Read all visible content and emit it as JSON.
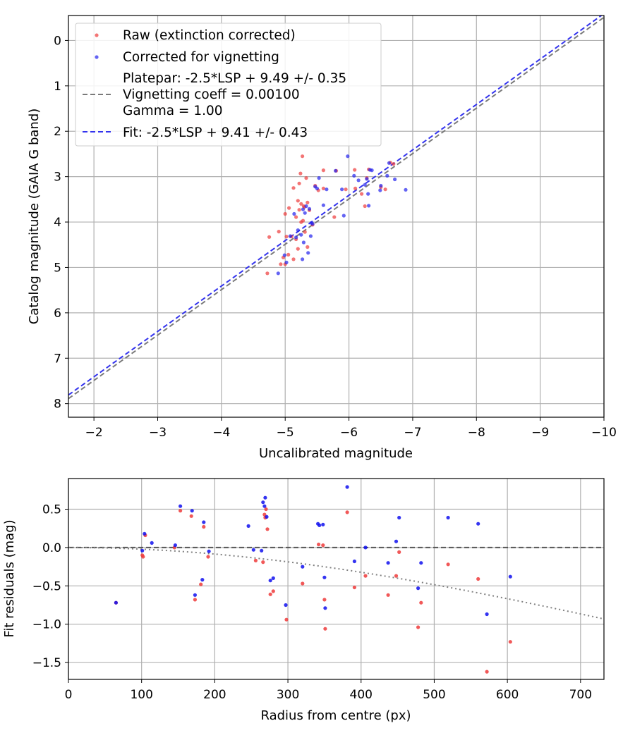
{
  "chart_data": [
    {
      "type": "scatter",
      "xlabel": "Uncalibrated magnitude",
      "ylabel": "Catalog magnitude (GAIA G band)",
      "xlim": [
        -1.6,
        -10
      ],
      "ylim": [
        8.3,
        -0.55
      ],
      "xticks": [
        -2,
        -3,
        -4,
        -5,
        -6,
        -7,
        -8,
        -9,
        -10
      ],
      "xtick_labels": [
        "−2",
        "−3",
        "−4",
        "−5",
        "−6",
        "−7",
        "−8",
        "−9",
        "−10"
      ],
      "yticks": [
        0,
        1,
        2,
        3,
        4,
        5,
        6,
        7,
        8
      ],
      "ytick_labels": [
        "0",
        "1",
        "2",
        "3",
        "4",
        "5",
        "6",
        "7",
        "8"
      ],
      "grid": true,
      "legend_position": "top-left",
      "series": [
        {
          "name": "raw",
          "label": "Raw (extinction corrected)",
          "color": "#ee3b3b",
          "points": [
            [
              -4.72,
              5.13
            ],
            [
              -4.75,
              4.33
            ],
            [
              -4.9,
              4.21
            ],
            [
              -4.93,
              4.93
            ],
            [
              -4.97,
              4.78
            ],
            [
              -5.0,
              4.93
            ],
            [
              -5.0,
              3.82
            ],
            [
              -5.02,
              4.32
            ],
            [
              -5.05,
              4.72
            ],
            [
              -5.06,
              3.69
            ],
            [
              -5.1,
              4.32
            ],
            [
              -5.13,
              4.82
            ],
            [
              -5.13,
              3.25
            ],
            [
              -5.17,
              3.89
            ],
            [
              -5.17,
              4.38
            ],
            [
              -5.2,
              3.53
            ],
            [
              -5.2,
              4.59
            ],
            [
              -5.22,
              3.73
            ],
            [
              -5.22,
              3.15
            ],
            [
              -5.24,
              2.93
            ],
            [
              -5.25,
              4.0
            ],
            [
              -5.25,
              3.6
            ],
            [
              -5.27,
              2.55
            ],
            [
              -5.28,
              3.97
            ],
            [
              -5.29,
              3.65
            ],
            [
              -5.3,
              3.67
            ],
            [
              -5.31,
              4.22
            ],
            [
              -5.33,
              3.03
            ],
            [
              -5.35,
              4.55
            ],
            [
              -5.35,
              3.57
            ],
            [
              -5.38,
              3.74
            ],
            [
              -5.43,
              4.06
            ],
            [
              -5.47,
              3.2
            ],
            [
              -5.52,
              3.3
            ],
            [
              -5.6,
              2.86
            ],
            [
              -5.6,
              3.26
            ],
            [
              -5.77,
              3.89
            ],
            [
              -5.8,
              2.87
            ],
            [
              -5.95,
              3.28
            ],
            [
              -6.09,
              2.85
            ],
            [
              -6.1,
              3.26
            ],
            [
              -6.2,
              3.38
            ],
            [
              -6.25,
              3.65
            ],
            [
              -6.28,
              3.03
            ],
            [
              -6.31,
              2.84
            ],
            [
              -6.5,
              3.23
            ],
            [
              -6.57,
              3.28
            ],
            [
              -6.65,
              2.69
            ],
            [
              -6.7,
              2.72
            ]
          ]
        },
        {
          "name": "corrected",
          "label": "Corrected for vignetting",
          "color": "#2222ee",
          "points": [
            [
              -4.89,
              5.13
            ],
            [
              -4.99,
              4.73
            ],
            [
              -5.02,
              4.89
            ],
            [
              -5.08,
              4.31
            ],
            [
              -5.14,
              3.82
            ],
            [
              -5.17,
              4.34
            ],
            [
              -5.2,
              4.18
            ],
            [
              -5.25,
              4.28
            ],
            [
              -5.27,
              4.82
            ],
            [
              -5.28,
              3.72
            ],
            [
              -5.29,
              4.45
            ],
            [
              -5.31,
              3.8
            ],
            [
              -5.33,
              3.65
            ],
            [
              -5.36,
              4.68
            ],
            [
              -5.38,
              3.71
            ],
            [
              -5.4,
              4.31
            ],
            [
              -5.41,
              4.02
            ],
            [
              -5.43,
              4.04
            ],
            [
              -5.47,
              3.22
            ],
            [
              -5.5,
              3.26
            ],
            [
              -5.53,
              3.03
            ],
            [
              -5.6,
              3.63
            ],
            [
              -5.65,
              3.28
            ],
            [
              -5.79,
              2.87
            ],
            [
              -5.89,
              3.28
            ],
            [
              -5.92,
              3.86
            ],
            [
              -5.98,
              2.55
            ],
            [
              -6.08,
              2.98
            ],
            [
              -6.15,
              3.08
            ],
            [
              -6.25,
              3.18
            ],
            [
              -6.28,
              3.05
            ],
            [
              -6.3,
              3.38
            ],
            [
              -6.31,
              3.64
            ],
            [
              -6.33,
              2.85
            ],
            [
              -6.36,
              2.86
            ],
            [
              -6.49,
              3.3
            ],
            [
              -6.5,
              3.2
            ],
            [
              -6.6,
              2.98
            ],
            [
              -6.63,
              2.7
            ],
            [
              -6.72,
              3.06
            ],
            [
              -6.89,
              3.29
            ]
          ]
        }
      ],
      "lines": [
        {
          "label": "Platepar: -2.5*LSP + 9.49 +/- 0.35\nVignetting coeff = 0.00100\nGamma = 1.00",
          "color": "#7a7a7a",
          "style": "dashed",
          "x": [
            -1.6,
            -10
          ],
          "y": [
            7.89,
            -0.51
          ]
        },
        {
          "label": "Fit: -2.5*LSP + 9.41 +/- 0.43",
          "color": "#3333ee",
          "style": "dashed",
          "x": [
            -1.6,
            -10
          ],
          "y": [
            7.81,
            -0.59
          ]
        }
      ]
    },
    {
      "type": "scatter",
      "xlabel": "Radius from centre (px)",
      "ylabel": "Fit residuals (mag)",
      "xlim": [
        0,
        732
      ],
      "ylim": [
        -1.72,
        0.9
      ],
      "xticks": [
        0,
        100,
        200,
        300,
        400,
        500,
        600,
        700
      ],
      "xtick_labels": [
        "0",
        "100",
        "200",
        "300",
        "400",
        "500",
        "600",
        "700"
      ],
      "yticks": [
        0.5,
        0.0,
        -0.5,
        -1.0,
        -1.5
      ],
      "ytick_labels": [
        "0.5",
        "0.0",
        "−0.5",
        "−1.0",
        "−1.5"
      ],
      "grid": true,
      "series": [
        {
          "name": "raw",
          "color": "#ee3b3b",
          "points": [
            [
              65,
              -0.72
            ],
            [
              101,
              -0.1
            ],
            [
              102,
              -0.12
            ],
            [
              105,
              0.16
            ],
            [
              145,
              0.0
            ],
            [
              153,
              0.48
            ],
            [
              168,
              0.41
            ],
            [
              173,
              -0.68
            ],
            [
              181,
              -0.48
            ],
            [
              185,
              0.27
            ],
            [
              191,
              -0.12
            ],
            [
              256,
              -0.17
            ],
            [
              266,
              -0.19
            ],
            [
              268,
              0.43
            ],
            [
              269,
              0.39
            ],
            [
              270,
              0.5
            ],
            [
              272,
              0.24
            ],
            [
              276,
              -0.61
            ],
            [
              280,
              -0.57
            ],
            [
              298,
              -0.94
            ],
            [
              320,
              -0.47
            ],
            [
              342,
              0.04
            ],
            [
              348,
              0.03
            ],
            [
              350,
              -0.68
            ],
            [
              351,
              -1.06
            ],
            [
              381,
              0.46
            ],
            [
              391,
              -0.52
            ],
            [
              406,
              -0.37
            ],
            [
              437,
              -0.62
            ],
            [
              448,
              -0.37
            ],
            [
              452,
              -0.06
            ],
            [
              478,
              -1.04
            ],
            [
              482,
              -0.72
            ],
            [
              519,
              -0.22
            ],
            [
              560,
              -0.41
            ],
            [
              572,
              -1.62
            ],
            [
              604,
              -1.23
            ]
          ]
        },
        {
          "name": "corrected",
          "color": "#1111ee",
          "points": [
            [
              65,
              -0.72
            ],
            [
              101,
              -0.04
            ],
            [
              104,
              0.18
            ],
            [
              114,
              0.06
            ],
            [
              146,
              0.03
            ],
            [
              153,
              0.54
            ],
            [
              169,
              0.48
            ],
            [
              173,
              -0.62
            ],
            [
              183,
              -0.42
            ],
            [
              185,
              0.33
            ],
            [
              192,
              -0.05
            ],
            [
              246,
              0.28
            ],
            [
              253,
              -0.03
            ],
            [
              264,
              -0.04
            ],
            [
              266,
              0.59
            ],
            [
              268,
              0.54
            ],
            [
              269,
              0.65
            ],
            [
              271,
              0.4
            ],
            [
              276,
              -0.43
            ],
            [
              280,
              -0.4
            ],
            [
              297,
              -0.75
            ],
            [
              320,
              -0.25
            ],
            [
              341,
              0.31
            ],
            [
              343,
              0.29
            ],
            [
              348,
              0.3
            ],
            [
              350,
              -0.39
            ],
            [
              351,
              -0.79
            ],
            [
              381,
              0.79
            ],
            [
              391,
              -0.18
            ],
            [
              406,
              0.0
            ],
            [
              437,
              -0.2
            ],
            [
              448,
              0.08
            ],
            [
              452,
              0.39
            ],
            [
              478,
              -0.53
            ],
            [
              482,
              -0.2
            ],
            [
              519,
              0.39
            ],
            [
              560,
              0.31
            ],
            [
              572,
              -0.87
            ],
            [
              604,
              -0.38
            ]
          ]
        }
      ],
      "lines": [
        {
          "name": "zero-residual",
          "color": "#555555",
          "style": "dashed",
          "x": [
            0,
            732
          ],
          "y": [
            0,
            0
          ]
        },
        {
          "name": "vignetting-curve",
          "color": "#808080",
          "style": "dotted",
          "function": "2.5*log10(cos(atan(0.001*r))^4)",
          "coeff": 0.001
        }
      ]
    }
  ]
}
